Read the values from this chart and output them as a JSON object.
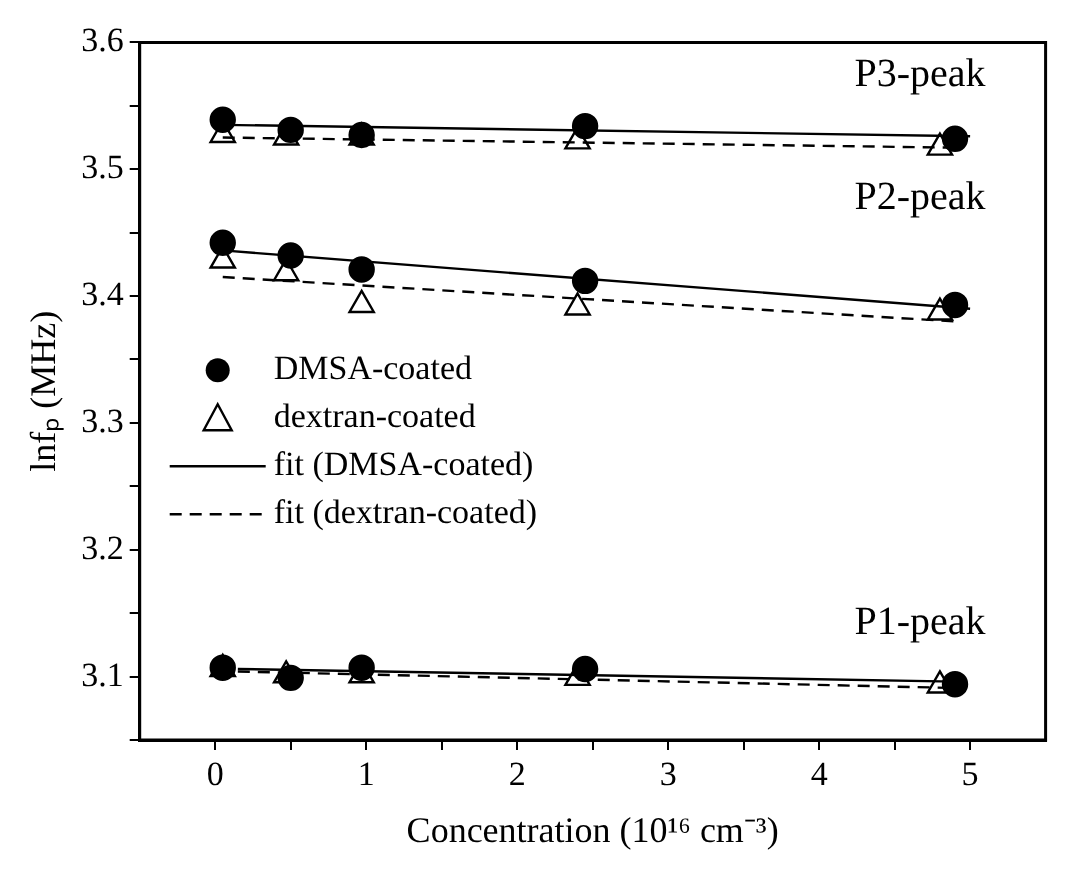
{
  "chart_data": {
    "type": "scatter",
    "xlabel": "Concentration (10¹⁶ cm⁻³)",
    "ylabel": "lnfₚ (MHz)",
    "xlim": [
      -0.5,
      5.5
    ],
    "ylim": [
      3.05,
      3.6
    ],
    "xticks": [
      0,
      {
        "value": 0.5,
        "label": null
      },
      1,
      {
        "value": 1.5,
        "label": null
      },
      2,
      {
        "value": 2.5,
        "label": null
      },
      3,
      {
        "value": 3.5,
        "label": null
      },
      4,
      {
        "value": 4.5,
        "label": null
      },
      5
    ],
    "yticks": [
      {
        "value": 3.05,
        "label": null
      },
      3.1,
      {
        "value": 3.15,
        "label": null
      },
      3.2,
      {
        "value": 3.25,
        "label": null
      },
      3.3,
      {
        "value": 3.35,
        "label": null
      },
      3.4,
      {
        "value": 3.45,
        "label": null
      },
      3.5,
      {
        "value": 3.55,
        "label": null
      },
      3.6
    ],
    "legend": "left",
    "series": [
      {
        "name": "DMSA-coated",
        "type": "scatter",
        "marker": "circle",
        "color": "#000000",
        "x": [
          0.05,
          0.5,
          0.97,
          2.45,
          4.9
        ],
        "values": [
          3.539,
          3.531,
          3.527,
          3.534,
          3.524
        ]
      },
      {
        "type": "scatter",
        "marker": "circle",
        "color": "#000000",
        "x": [
          0.05,
          0.5,
          0.97,
          2.45,
          4.9
        ],
        "values": [
          3.442,
          3.432,
          3.421,
          3.412,
          3.393
        ]
      },
      {
        "type": "scatter",
        "marker": "circle",
        "color": "#000000",
        "x": [
          0.05,
          0.5,
          0.97,
          2.45,
          4.9
        ],
        "values": [
          3.107,
          3.099,
          3.107,
          3.106,
          3.094
        ]
      },
      {
        "name": "dextran-coated",
        "type": "scatter",
        "marker": "triangle",
        "color": "#000000",
        "x": [
          0.05,
          0.47,
          0.97,
          2.4,
          4.8
        ],
        "values": [
          3.527,
          3.525,
          3.525,
          3.522,
          3.517
        ]
      },
      {
        "type": "scatter",
        "marker": "triangle",
        "color": "#000000",
        "x": [
          0.05,
          0.47,
          0.97,
          2.4,
          4.8
        ],
        "values": [
          3.428,
          3.418,
          3.393,
          3.391,
          3.387
        ]
      },
      {
        "type": "scatter",
        "marker": "triangle",
        "color": "#000000",
        "x": [
          0.05,
          0.47,
          0.97,
          2.4,
          4.8
        ],
        "values": [
          3.106,
          3.101,
          3.101,
          3.099,
          3.093
        ]
      },
      {
        "name": "fit (DMSA-coated)",
        "type": "line",
        "marker": "none",
        "line_style": "solid",
        "color": "#000000",
        "x": [
          0.05,
          5
        ],
        "values": [
          3.535,
          3.526
        ]
      },
      {
        "type": "line",
        "marker": "none",
        "line_style": "solid",
        "color": "#000000",
        "x": [
          0.05,
          5
        ],
        "values": [
          3.436,
          3.39
        ]
      },
      {
        "type": "line",
        "marker": "none",
        "line_style": "solid",
        "color": "#000000",
        "x": [
          0.15,
          4.9
        ],
        "values": [
          3.106,
          3.096
        ]
      },
      {
        "name": "fit (dextran-coated)",
        "type": "line",
        "marker": "none",
        "line_style": "dashed",
        "color": "#000000",
        "x": [
          0.05,
          4.9
        ],
        "values": [
          3.525,
          3.517
        ]
      },
      {
        "type": "line",
        "marker": "none",
        "line_style": "dashed",
        "color": "#000000",
        "x": [
          0.05,
          4.9
        ],
        "values": [
          3.415,
          3.38
        ]
      },
      {
        "type": "line",
        "marker": "none",
        "line_style": "dashed",
        "color": "#000000",
        "x": [
          0.15,
          4.9
        ],
        "values": [
          3.104,
          3.091
        ]
      }
    ],
    "annotations": [
      "P3-peak",
      "P2-peak",
      "P1-peak"
    ]
  }
}
